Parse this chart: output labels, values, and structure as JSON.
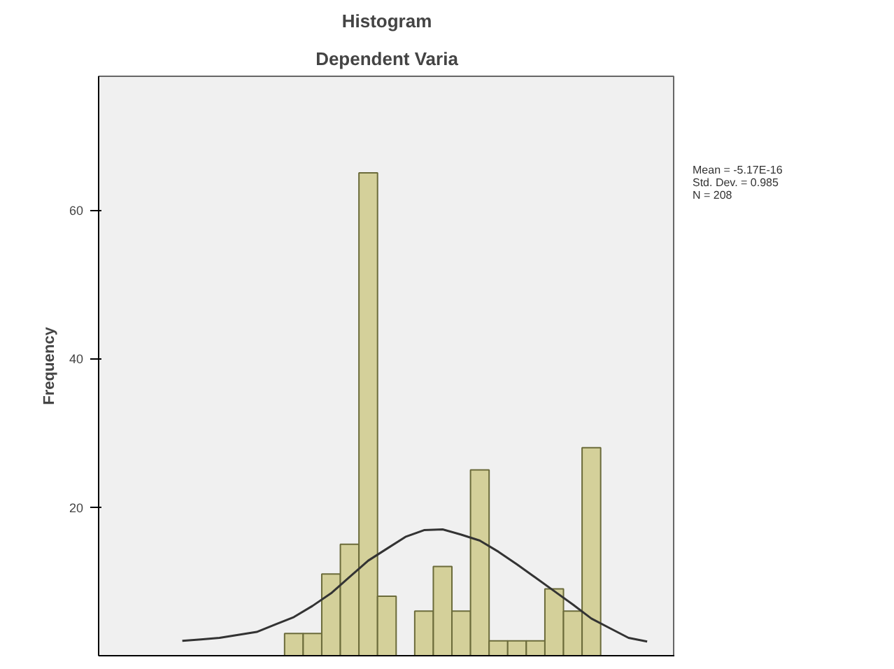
{
  "chart_data": {
    "type": "bar",
    "title": "Histogram",
    "subtitle": "Dependent Varia",
    "ylabel": "Frequency",
    "categories": [
      null,
      null,
      null,
      null,
      null,
      null,
      null,
      null,
      null,
      null,
      null,
      null,
      null,
      null,
      null,
      null,
      null,
      null,
      null,
      null,
      null,
      null,
      null,
      null,
      null,
      null,
      null,
      null,
      null,
      null,
      null
    ],
    "series": [
      {
        "color": "#d4d09a",
        "values": [
          null,
          null,
          null,
          null,
          null,
          null,
          null,
          null,
          null,
          null,
          3,
          3,
          11,
          15,
          65,
          8,
          0,
          6,
          12,
          6,
          25,
          2,
          2,
          2,
          9,
          6,
          28,
          null,
          null,
          null,
          null
        ]
      },
      {
        "type": "line",
        "color": "#333333",
        "values": [
          null,
          null,
          null,
          null,
          2.0,
          2.2,
          2.4,
          2.8,
          3.2,
          4.2,
          5.2,
          6.7,
          8.4,
          10.6,
          12.8,
          14.4,
          16.0,
          16.9,
          17.0,
          16.3,
          15.5,
          14.0,
          12.3,
          10.5,
          8.7,
          6.9,
          5.0,
          3.7,
          2.4,
          1.9,
          null
        ]
      }
    ],
    "annotations": [
      "Mean = -5.17E-16",
      "Std. Dev. = 0.985",
      "N = 208"
    ],
    "ylim": [
      0,
      78
    ],
    "yticks": [
      20,
      40,
      60
    ],
    "tick_labels": "y"
  }
}
